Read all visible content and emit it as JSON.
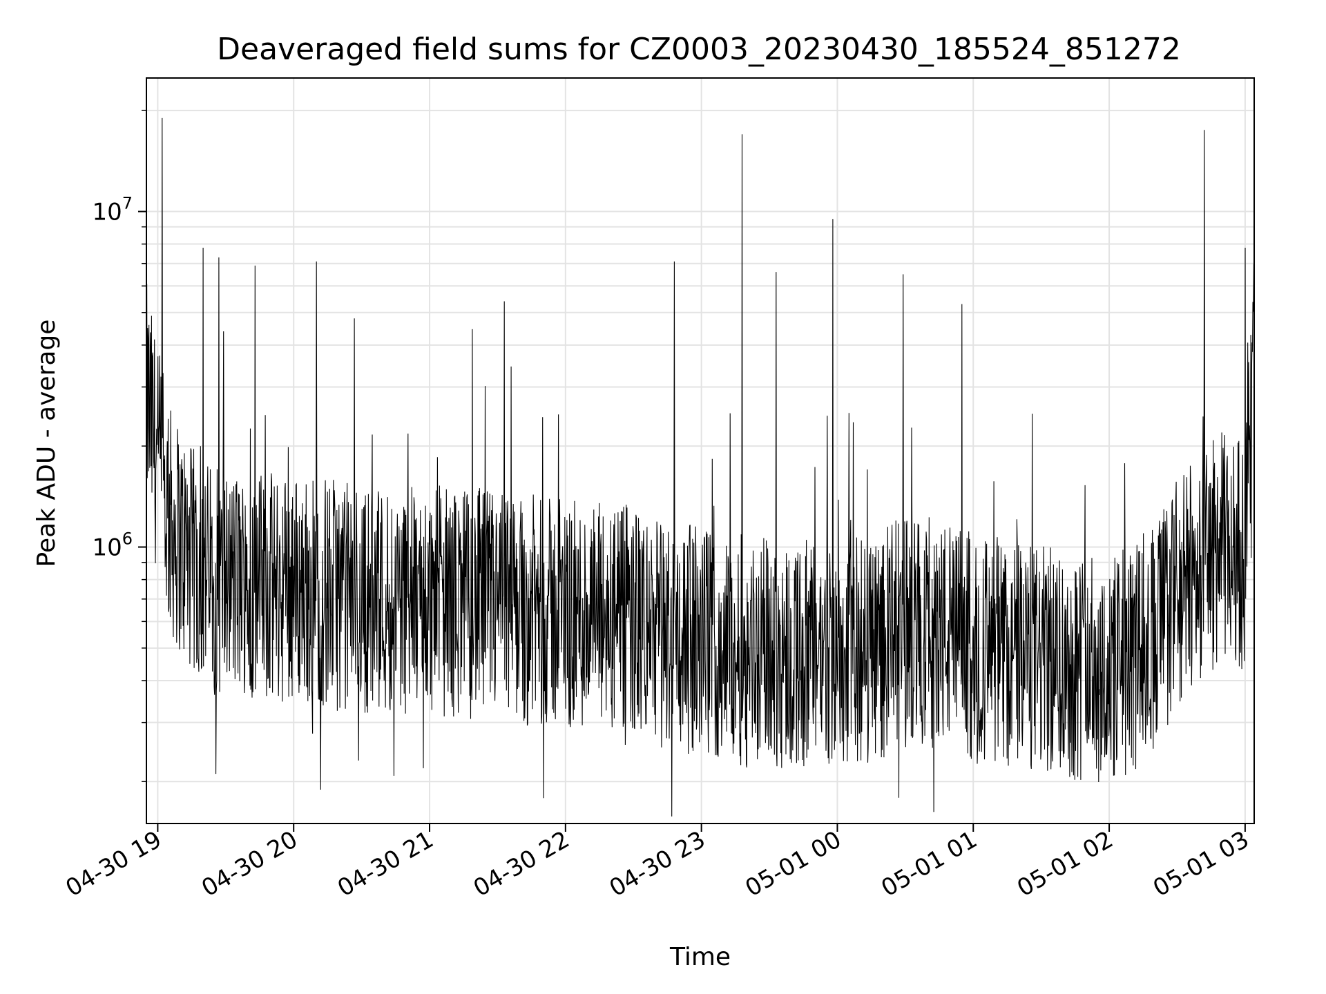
{
  "chart_data": {
    "type": "line",
    "title": "Deaveraged field sums for CZ0003_20230430_185524_851272",
    "xlabel": "Time",
    "ylabel": "Peak ADU - average",
    "yscale": "log",
    "ylim": [
      150000,
      25000000
    ],
    "xlim": [
      "2023-04-30 18:55",
      "2023-05-01 03:04"
    ],
    "grid": true,
    "line_color": "#000000",
    "x_ticks": [
      "04-30 19",
      "04-30 20",
      "04-30 21",
      "04-30 22",
      "04-30 23",
      "05-01 00",
      "05-01 01",
      "05-01 02",
      "05-01 03"
    ],
    "y_ticks": [
      {
        "value": 1000000,
        "base": "10",
        "exp": "6"
      },
      {
        "value": 10000000,
        "base": "10",
        "exp": "7"
      }
    ],
    "series": [
      {
        "x": [
          "2023-04-30 18:55",
          "2023-04-30 19:00",
          "2023-04-30 19:05",
          "2023-04-30 19:10",
          "2023-04-30 19:15",
          "2023-04-30 19:20",
          "2023-04-30 19:25",
          "2023-04-30 19:30",
          "2023-04-30 19:35",
          "2023-04-30 19:40",
          "2023-04-30 19:45",
          "2023-04-30 19:50",
          "2023-04-30 19:55",
          "2023-04-30 20:00",
          "2023-04-30 20:10",
          "2023-04-30 20:20",
          "2023-04-30 20:30",
          "2023-04-30 20:40",
          "2023-04-30 20:50",
          "2023-04-30 21:00",
          "2023-04-30 21:10",
          "2023-04-30 21:20",
          "2023-04-30 21:30",
          "2023-04-30 21:40",
          "2023-04-30 21:50",
          "2023-04-30 22:00",
          "2023-04-30 22:10",
          "2023-04-30 22:20",
          "2023-04-30 22:30",
          "2023-04-30 22:40",
          "2023-04-30 22:50",
          "2023-04-30 23:00",
          "2023-04-30 23:10",
          "2023-04-30 23:20",
          "2023-04-30 23:30",
          "2023-04-30 23:40",
          "2023-04-30 23:50",
          "2023-05-01 00:00",
          "2023-05-01 00:10",
          "2023-05-01 00:20",
          "2023-05-01 00:30",
          "2023-05-01 00:40",
          "2023-05-01 00:50",
          "2023-05-01 01:00",
          "2023-05-01 01:10",
          "2023-05-01 01:20",
          "2023-05-01 01:30",
          "2023-05-01 01:40",
          "2023-05-01 01:50",
          "2023-05-01 02:00",
          "2023-05-01 02:10",
          "2023-05-01 02:20",
          "2023-05-01 02:30",
          "2023-05-01 02:40",
          "2023-05-01 02:50",
          "2023-05-01 03:00",
          "2023-05-01 03:04"
        ],
        "y": [
          2800000,
          1800000,
          1200000,
          1050000,
          900000,
          850000,
          800000,
          780000,
          780000,
          760000,
          760000,
          750000,
          760000,
          760000,
          740000,
          720000,
          700000,
          700000,
          690000,
          700000,
          680000,
          680000,
          670000,
          650000,
          640000,
          620000,
          620000,
          600000,
          590000,
          570000,
          540000,
          520000,
          500000,
          490000,
          490000,
          480000,
          470000,
          480000,
          490000,
          520000,
          560000,
          560000,
          540000,
          500000,
          480000,
          470000,
          460000,
          450000,
          440000,
          420000,
          450000,
          560000,
          700000,
          900000,
          1000000,
          950000,
          4000000
        ]
      }
    ],
    "spikes": [
      {
        "x": "2023-04-30 19:02",
        "y": 19000000
      },
      {
        "x": "2023-04-30 19:20",
        "y": 7800000
      },
      {
        "x": "2023-04-30 19:27",
        "y": 7300000
      },
      {
        "x": "2023-04-30 19:43",
        "y": 6900000
      },
      {
        "x": "2023-04-30 20:10",
        "y": 7100000
      },
      {
        "x": "2023-04-30 21:33",
        "y": 5400000
      },
      {
        "x": "2023-04-30 22:48",
        "y": 7100000
      },
      {
        "x": "2023-04-30 23:18",
        "y": 17000000
      },
      {
        "x": "2023-04-30 23:33",
        "y": 6600000
      },
      {
        "x": "2023-04-30 23:58",
        "y": 9500000
      },
      {
        "x": "2023-05-01 00:29",
        "y": 6500000
      },
      {
        "x": "2023-05-01 00:55",
        "y": 5300000
      },
      {
        "x": "2023-05-01 02:42",
        "y": 17500000
      },
      {
        "x": "2023-05-01 03:00",
        "y": 7800000
      }
    ]
  }
}
